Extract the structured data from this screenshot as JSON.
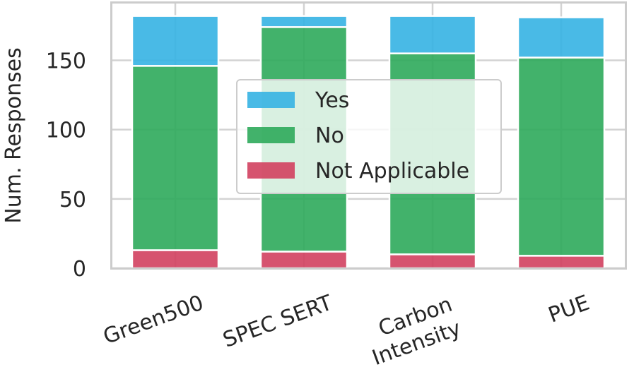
{
  "chart_data": {
    "type": "bar",
    "stacked": true,
    "categories": [
      "Green500",
      "SPEC SERT",
      "Carbon\nIntensity",
      "PUE"
    ],
    "series": [
      {
        "name": "Not Applicable",
        "color": "#d1405f",
        "values": [
          13,
          12,
          10,
          9
        ]
      },
      {
        "name": "No",
        "color": "#2eaa5b",
        "values": [
          133,
          162,
          145,
          143
        ]
      },
      {
        "name": "Yes",
        "color": "#35b2e3",
        "values": [
          36,
          8,
          27,
          29
        ]
      }
    ],
    "legend_order": [
      "Yes",
      "No",
      "Not Applicable"
    ],
    "ylabel": "Num. Responses",
    "xlabel": "",
    "yticks": [
      0,
      50,
      100,
      150
    ],
    "ylim": [
      0,
      192
    ],
    "grid": true,
    "legend_position": "center-right",
    "xtick_rotation": -20
  }
}
